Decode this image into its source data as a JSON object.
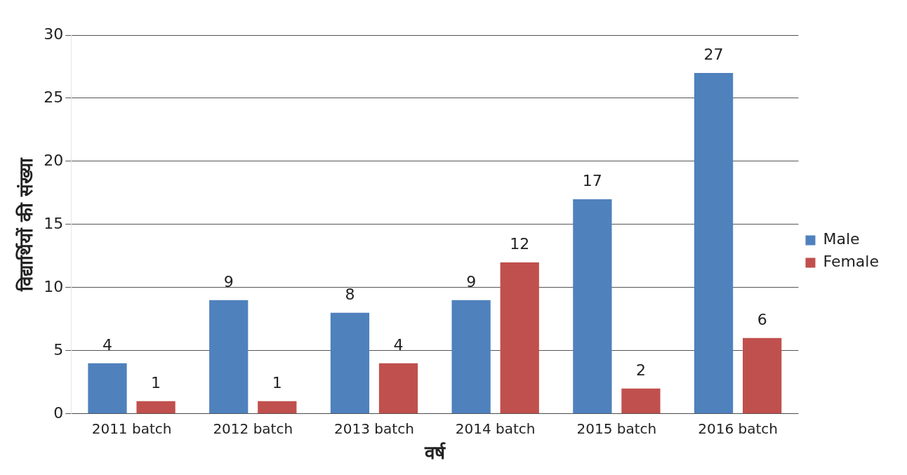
{
  "chart_data": {
    "type": "bar",
    "xlabel": "वर्ष",
    "ylabel": "विद्यार्थियों की संख्या",
    "categories": [
      "2011 batch",
      "2012 batch",
      "2013 batch",
      "2014 batch",
      "2015 batch",
      "2016 batch"
    ],
    "series": [
      {
        "name": "Male",
        "color": "#4f81bd",
        "values": [
          4,
          9,
          8,
          9,
          17,
          27
        ]
      },
      {
        "name": "Female",
        "color": "#c0504d",
        "values": [
          1,
          1,
          4,
          12,
          2,
          6
        ]
      }
    ],
    "ylim": [
      0,
      30
    ],
    "yticks": [
      0,
      5,
      10,
      15,
      20,
      25,
      30
    ],
    "grid": "y",
    "legend": "right",
    "data_labels": true
  }
}
